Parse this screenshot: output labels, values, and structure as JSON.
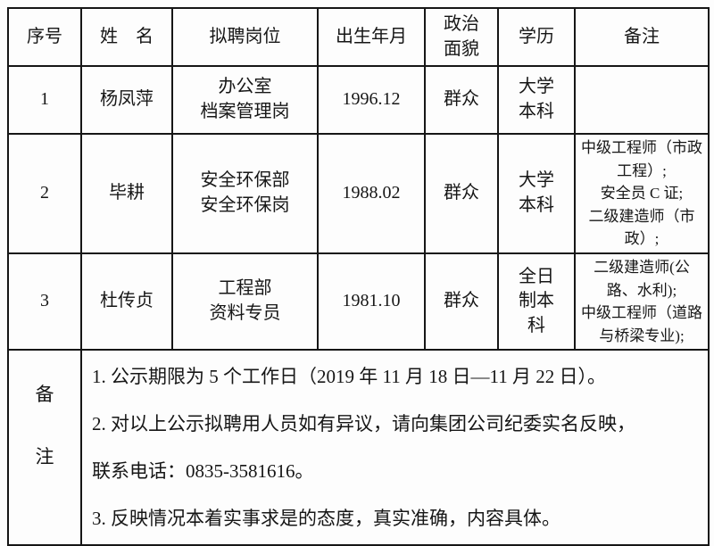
{
  "table": {
    "headers": {
      "seq": "序号",
      "name": "姓　名",
      "position": "拟聘岗位",
      "birth": "出生年月",
      "political": "政治\n面貌",
      "education": "学历",
      "remark": "备注"
    },
    "rows": [
      {
        "seq": "1",
        "name": "杨凤萍",
        "position": "办公室\n档案管理岗",
        "birth": "1996.12",
        "political": "群众",
        "education": "大学\n本科",
        "remark": ""
      },
      {
        "seq": "2",
        "name": "毕耕",
        "position": "安全环保部\n安全环保岗",
        "birth": "1988.02",
        "political": "群众",
        "education": "大学\n本科",
        "remark": "中级工程师（市政工程）;\n安全员 C 证;\n二级建造师（市政）;"
      },
      {
        "seq": "3",
        "name": "杜传贞",
        "position": "工程部\n资料专员",
        "birth": "1981.10",
        "political": "群众",
        "education": "全日\n制本\n科",
        "remark": "二级建造师(公路、水利);\n中级工程师（道路与桥梁专业);"
      }
    ],
    "footer": {
      "label": "备\n注",
      "lines": [
        "1. 公示期限为 5 个工作日（2019 年 11 月 18 日—11 月 22 日）。",
        "2. 对以上公示拟聘用人员如有异议，请向集团公司纪委实名反映，",
        "联系电话：0835-3581616。",
        "3. 反映情况本着实事求是的态度，真实准确，内容具体。"
      ]
    },
    "colors": {
      "border": "#161616",
      "text": "#161616",
      "background": "#fdfdfd"
    }
  }
}
